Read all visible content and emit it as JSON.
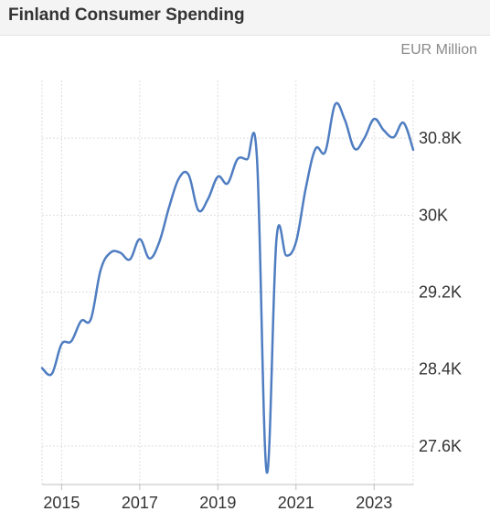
{
  "header": {
    "title": "Finland Consumer Spending"
  },
  "unit_label": "EUR Million",
  "colors": {
    "line": "#4f7dc1",
    "grid": "#dedede",
    "axis": "#bfbfbf",
    "header_bg": "#f4f4f4"
  },
  "chart_data": {
    "type": "line",
    "title": "Finland Consumer Spending",
    "xlabel": "",
    "ylabel": "EUR Million",
    "xlim": [
      2014.5,
      2024.0
    ],
    "ylim": [
      27200,
      31400
    ],
    "grid": true,
    "x_ticks": [
      2015,
      2017,
      2019,
      2021,
      2023
    ],
    "x_tick_labels": [
      "2015",
      "2017",
      "2019",
      "2021",
      "2023"
    ],
    "y_ticks": [
      27600,
      28400,
      29200,
      30000,
      30800
    ],
    "y_tick_labels": [
      "27.6K",
      "28.4K",
      "29.2K",
      "30K",
      "30.8K"
    ],
    "series": [
      {
        "x": [
          2014.5,
          2014.75,
          2015.0,
          2015.25,
          2015.5,
          2015.75,
          2016.0,
          2016.25,
          2016.5,
          2016.75,
          2017.0,
          2017.25,
          2017.5,
          2017.75,
          2018.0,
          2018.25,
          2018.5,
          2018.75,
          2019.0,
          2019.25,
          2019.5,
          2019.75,
          2020.0,
          2020.25,
          2020.5,
          2020.75,
          2021.0,
          2021.25,
          2021.5,
          2021.75,
          2022.0,
          2022.25,
          2022.5,
          2022.75,
          2023.0,
          2023.25,
          2023.5,
          2023.75,
          2024.0
        ],
        "y": [
          28410,
          28350,
          28660,
          28690,
          28900,
          28920,
          29430,
          29610,
          29610,
          29540,
          29750,
          29550,
          29720,
          30080,
          30380,
          30420,
          30050,
          30170,
          30400,
          30330,
          30580,
          30580,
          30600,
          27330,
          29750,
          29580,
          29720,
          30280,
          30690,
          30660,
          31150,
          30990,
          30690,
          30800,
          31000,
          30880,
          30810,
          30960,
          30680
        ]
      }
    ]
  }
}
